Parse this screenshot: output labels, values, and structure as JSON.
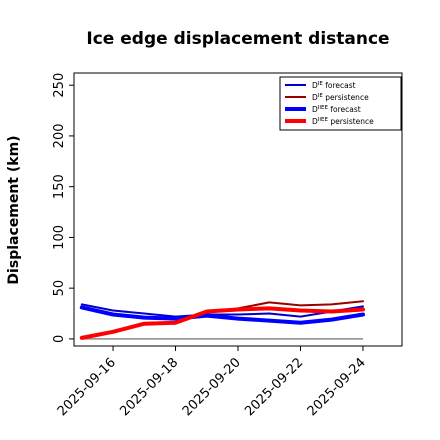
{
  "chart_data": {
    "type": "line",
    "title": "Ice edge displacement distance",
    "xlabel": "",
    "ylabel": "Displacement (km)",
    "ylim": [
      -7,
      262
    ],
    "yticks": [
      0,
      50,
      100,
      150,
      200,
      250
    ],
    "xlim": [
      "2025-09-14T18:00",
      "2025-09-25T06:00"
    ],
    "xticks": [
      "2025-09-16",
      "2025-09-18",
      "2025-09-20",
      "2025-09-22",
      "2025-09-24"
    ],
    "tick_colors": [
      "#2a8a2a",
      "#000000",
      "#000000",
      "#000000",
      "#000000"
    ],
    "grid": false,
    "legend_position": "top-right",
    "baseline": 0,
    "x": [
      "2025-09-15",
      "2025-09-16",
      "2025-09-17",
      "2025-09-18",
      "2025-09-19",
      "2025-09-20",
      "2025-09-21",
      "2025-09-22",
      "2025-09-23",
      "2025-09-24"
    ],
    "series": [
      {
        "name_main": "D",
        "name_sup": "IE",
        "name_rest": " forecast",
        "color": "#0000cc",
        "width": 2,
        "values": [
          34,
          28,
          25,
          22,
          24,
          24,
          25,
          22,
          27,
          32
        ]
      },
      {
        "name_main": "D",
        "name_sup": "IE",
        "name_rest": " persistence",
        "color": "#990000",
        "width": 2,
        "values": [
          null,
          null,
          null,
          null,
          26,
          30,
          36,
          33,
          34,
          37
        ]
      },
      {
        "name_main": "D",
        "name_sup": "IIEE",
        "name_rest": " forecast",
        "color": "#0000ff",
        "width": 4,
        "values": [
          31,
          24,
          21,
          20,
          23,
          20,
          18,
          16,
          19,
          24
        ]
      },
      {
        "name_main": "D",
        "name_sup": "IIEE",
        "name_rest": " persistence",
        "color": "#ff0000",
        "width": 4,
        "values": [
          1,
          7,
          15,
          16,
          27,
          29,
          30,
          28,
          27,
          29
        ]
      }
    ]
  }
}
